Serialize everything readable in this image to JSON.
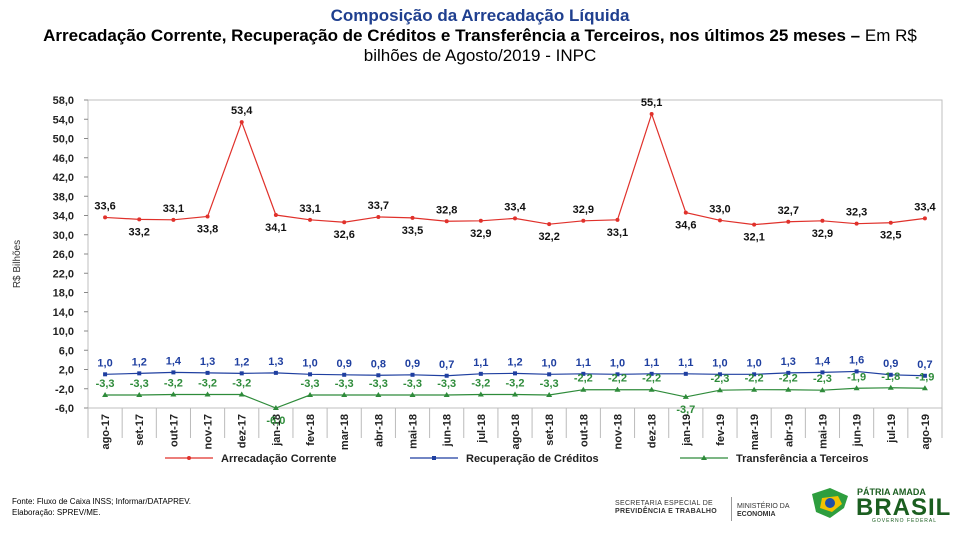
{
  "header": {
    "title": "Composição da Arrecadação Líquida",
    "subtitle_bold": "Arrecadação Corrente, Recuperação de Créditos e Transferência a Terceiros, nos últimos 25 meses –",
    "subtitle_normal": " Em R$ bilhões de Agosto/2019 - INPC"
  },
  "chart_data": {
    "type": "line",
    "ylabel": "R$ Bilhões",
    "ylim": [
      -6.0,
      58.0
    ],
    "yticks": [
      "58,0",
      "54,0",
      "50,0",
      "46,0",
      "42,0",
      "38,0",
      "34,0",
      "30,0",
      "26,0",
      "22,0",
      "18,0",
      "14,0",
      "10,0",
      "6,0",
      "2,0",
      "-2,0",
      "-6,0"
    ],
    "yticks_values": [
      58,
      54,
      50,
      46,
      42,
      38,
      34,
      30,
      26,
      22,
      18,
      14,
      10,
      6,
      2,
      -2,
      -6
    ],
    "categories": [
      "ago-17",
      "set-17",
      "out-17",
      "nov-17",
      "dez-17",
      "jan-18",
      "fev-18",
      "mar-18",
      "abr-18",
      "mai-18",
      "jun-18",
      "jul-18",
      "ago-18",
      "set-18",
      "out-18",
      "nov-18",
      "dez-18",
      "jan-19",
      "fev-19",
      "mar-19",
      "abr-19",
      "mai-19",
      "jun-19",
      "jul-19",
      "ago-19"
    ],
    "series": [
      {
        "name": "Arrecadação Corrente",
        "color": "#e0312b",
        "marker": "circle",
        "values": [
          33.6,
          33.2,
          33.1,
          33.8,
          53.4,
          34.1,
          33.1,
          32.6,
          33.7,
          33.5,
          32.8,
          32.9,
          33.4,
          32.2,
          32.9,
          33.1,
          55.1,
          34.6,
          33.0,
          32.1,
          32.7,
          32.9,
          32.3,
          32.5,
          33.4
        ],
        "labels": [
          "33,6",
          "33,2",
          "33,1",
          "33,8",
          "53,4",
          "34,1",
          "33,1",
          "32,6",
          "33,7",
          "33,5",
          "32,8",
          "32,9",
          "33,4",
          "32,2",
          "32,9",
          "33,1",
          "55,1",
          "34,6",
          "33,0",
          "32,1",
          "32,7",
          "32,9",
          "32,3",
          "32,5",
          "33,4"
        ]
      },
      {
        "name": "Recuperação de Créditos",
        "color": "#1f3fa0",
        "marker": "square",
        "values": [
          1.0,
          1.2,
          1.4,
          1.3,
          1.2,
          1.3,
          1.0,
          0.9,
          0.8,
          0.9,
          0.7,
          1.1,
          1.2,
          1.0,
          1.1,
          1.0,
          1.1,
          1.1,
          1.0,
          1.0,
          1.3,
          1.4,
          1.6,
          0.9,
          0.7
        ],
        "labels": [
          "1,0",
          "1,2",
          "1,4",
          "1,3",
          "1,2",
          "1,3",
          "1,0",
          "0,9",
          "0,8",
          "0,9",
          "0,7",
          "1,1",
          "1,2",
          "1,0",
          "1,1",
          "1,0",
          "1,1",
          "1,1",
          "1,0",
          "1,0",
          "1,3",
          "1,4",
          "1,6",
          "0,9",
          "0,7"
        ]
      },
      {
        "name": "Transferência a Terceiros",
        "color": "#2e8b3a",
        "marker": "triangle",
        "values": [
          -3.3,
          -3.3,
          -3.2,
          -3.2,
          -3.2,
          -6.0,
          -3.3,
          -3.3,
          -3.3,
          -3.3,
          -3.3,
          -3.2,
          -3.2,
          -3.3,
          -2.2,
          -2.2,
          -2.2,
          -3.7,
          -2.3,
          -2.2,
          -2.2,
          -2.3,
          -1.9,
          -1.8,
          -1.9
        ],
        "labels": [
          "-3,3",
          "-3,3",
          "-3,2",
          "-3,2",
          "-3,2",
          "-6,0",
          "-3,3",
          "-3,3",
          "-3,3",
          "-3,3",
          "-3,3",
          "-3,2",
          "-3,2",
          "-3,3",
          "-2,2",
          "-2,2",
          "-2,2",
          "-3,7",
          "-2,3",
          "-2,2",
          "-2,2",
          "-2,3",
          "-1,9",
          "-1,8",
          "-1,9"
        ]
      }
    ]
  },
  "footer": {
    "source": "Fonte: Fluxo de Caixa INSS; Informar/DATAPREV.",
    "elaboration": "Elaboração: SPREV/ME.",
    "logo_secretaria_line1": "SECRETARIA ESPECIAL DE",
    "logo_secretaria_line2": "PREVIDÊNCIA E TRABALHO",
    "logo_ministerio_line1": "MINISTÉRIO DA",
    "logo_ministerio_line2": "ECONOMIA",
    "logo_brasil_top": "PÁTRIA AMADA",
    "logo_brasil_main": "BRASIL",
    "logo_brasil_sub": "GOVERNO FEDERAL"
  }
}
